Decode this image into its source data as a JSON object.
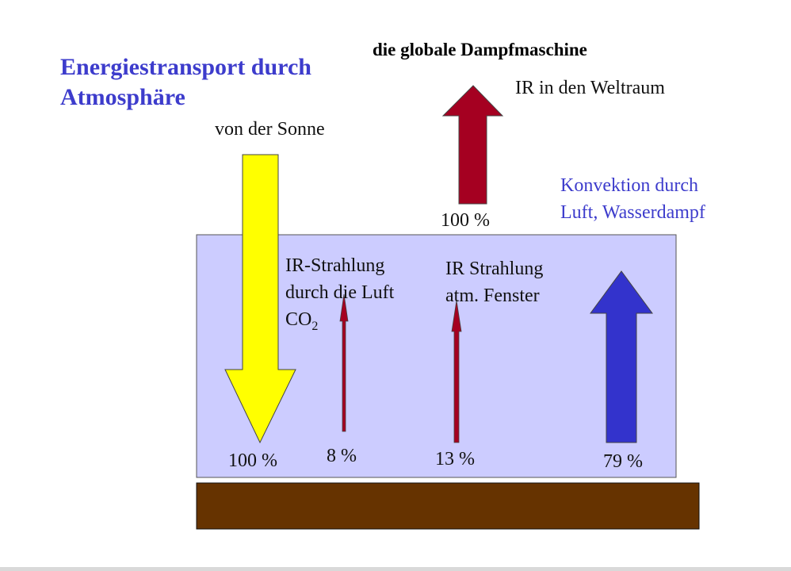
{
  "title": "Energiestransport durch Atmosphäre",
  "subtitle": "die globale Dampfmaschine",
  "labels": {
    "sun": "von der Sonne",
    "ir_space": "IR in den Weltraum",
    "convection_line1": "Konvektion durch",
    "convection_line2": "Luft, Wasserdampf",
    "ir_air_line1": "IR-Strahlung",
    "ir_air_line2": "durch die Luft",
    "ir_air_line3": "CO",
    "ir_air_sub": "2",
    "ir_window_line1": "IR Strahlung",
    "ir_window_line2": "atm. Fenster"
  },
  "values": {
    "outgoing": "100 %",
    "incoming": "100 %",
    "ir_air": "8 %",
    "ir_window": "13 %",
    "convection": "79 %"
  },
  "colors": {
    "title": "#3d3ccc",
    "atmosphere": "#ccccff",
    "ground": "#663300",
    "sun_arrow": "#ffff00",
    "ir_arrow": "#a50021",
    "convection_arrow": "#3333cc"
  }
}
